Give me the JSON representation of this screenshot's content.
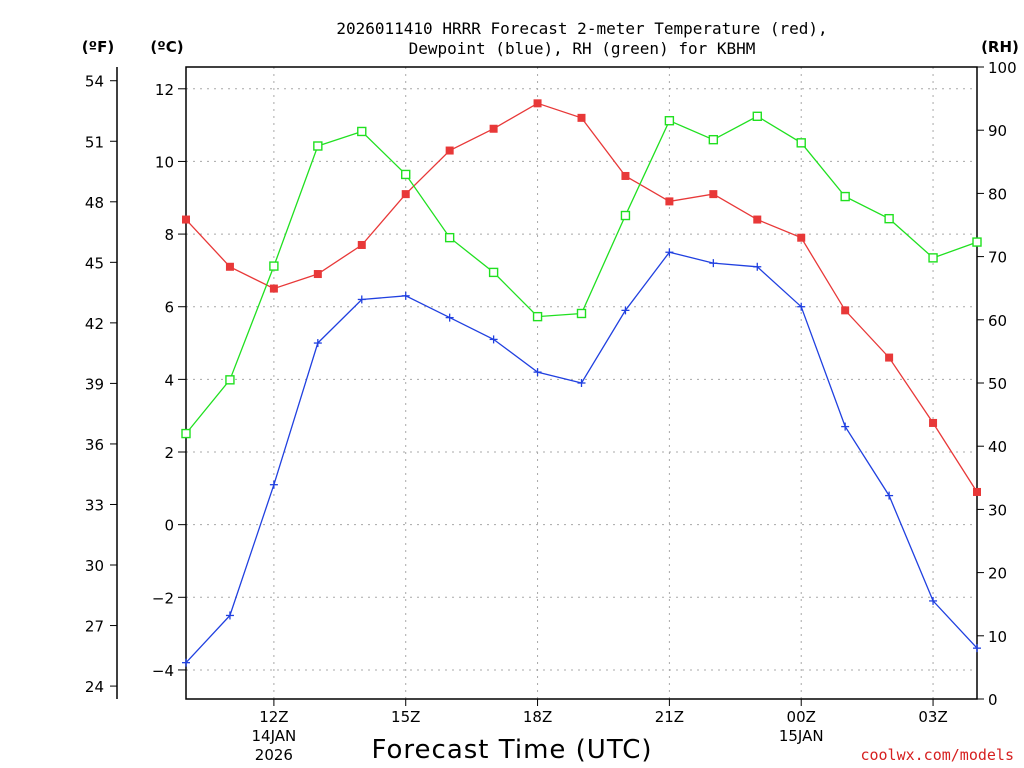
{
  "chart_data": {
    "type": "line",
    "title_lines": [
      "2026011410 HRRR Forecast 2-meter Temperature (red),",
      "Dewpoint (blue), RH (green) for KBHM"
    ],
    "units": {
      "fahrenheit": "(ºF)",
      "celsius": "(ºC)",
      "rh": "(RH)"
    },
    "xlabel": "Forecast Time (UTC)",
    "credit": "coolwx.com/models",
    "x_hours": [
      10,
      11,
      12,
      13,
      14,
      15,
      16,
      17,
      18,
      19,
      20,
      21,
      22,
      23,
      24,
      25,
      26,
      27,
      28
    ],
    "xlim": [
      10,
      28
    ],
    "x_ticks": [
      {
        "hour": 12,
        "label": "12Z",
        "sub": [
          "14JAN",
          "2026"
        ]
      },
      {
        "hour": 15,
        "label": "15Z",
        "sub": []
      },
      {
        "hour": 18,
        "label": "18Z",
        "sub": []
      },
      {
        "hour": 21,
        "label": "21Z",
        "sub": []
      },
      {
        "hour": 24,
        "label": "00Z",
        "sub": [
          "15JAN"
        ]
      },
      {
        "hour": 27,
        "label": "03Z",
        "sub": []
      }
    ],
    "celsius_axis": {
      "ylim": [
        -4.8,
        12.6
      ],
      "ticks": [
        12,
        10,
        8,
        6,
        4,
        2,
        0,
        -2,
        -4
      ],
      "tick_labels": [
        "12",
        "10",
        "8",
        "6",
        "4",
        "2",
        "0",
        "−2",
        "−4"
      ]
    },
    "fahrenheit_axis": {
      "ticks": [
        54,
        51,
        48,
        45,
        42,
        39,
        36,
        33,
        30,
        27,
        24
      ],
      "tick_labels": [
        "54",
        "51",
        "48",
        "45",
        "42",
        "39",
        "36",
        "33",
        "30",
        "27",
        "24"
      ]
    },
    "rh_axis": {
      "ylim": [
        0,
        100
      ],
      "ticks": [
        100,
        90,
        80,
        70,
        60,
        50,
        40,
        30,
        20,
        10,
        0
      ],
      "tick_labels": [
        "100",
        "90",
        "80",
        "70",
        "60",
        "50",
        "40",
        "30",
        "20",
        "10",
        "0"
      ]
    },
    "series": [
      {
        "name": "2-meter Temperature",
        "axis": "celsius",
        "color": "#e83838",
        "marker": "filled-square",
        "values": [
          8.4,
          7.1,
          6.5,
          6.9,
          7.7,
          9.1,
          10.3,
          10.9,
          11.6,
          11.2,
          9.6,
          8.9,
          9.1,
          8.4,
          7.9,
          5.9,
          4.6,
          2.8,
          0.9
        ]
      },
      {
        "name": "Dewpoint",
        "axis": "celsius",
        "color": "#2040e0",
        "marker": "plus",
        "values": [
          -3.8,
          -2.5,
          1.1,
          5.0,
          6.2,
          6.3,
          5.7,
          5.1,
          4.2,
          3.9,
          5.9,
          7.5,
          7.2,
          7.1,
          6.0,
          2.7,
          0.8,
          -2.1,
          -3.4
        ]
      },
      {
        "name": "RH",
        "axis": "rh",
        "color": "#20e020",
        "marker": "open-square",
        "values": [
          42,
          50.5,
          68.5,
          87.5,
          89.8,
          83,
          73,
          67.5,
          60.5,
          61,
          76.5,
          91.5,
          88.5,
          92.2,
          88,
          79.5,
          76,
          69.8,
          72.3
        ]
      }
    ]
  }
}
